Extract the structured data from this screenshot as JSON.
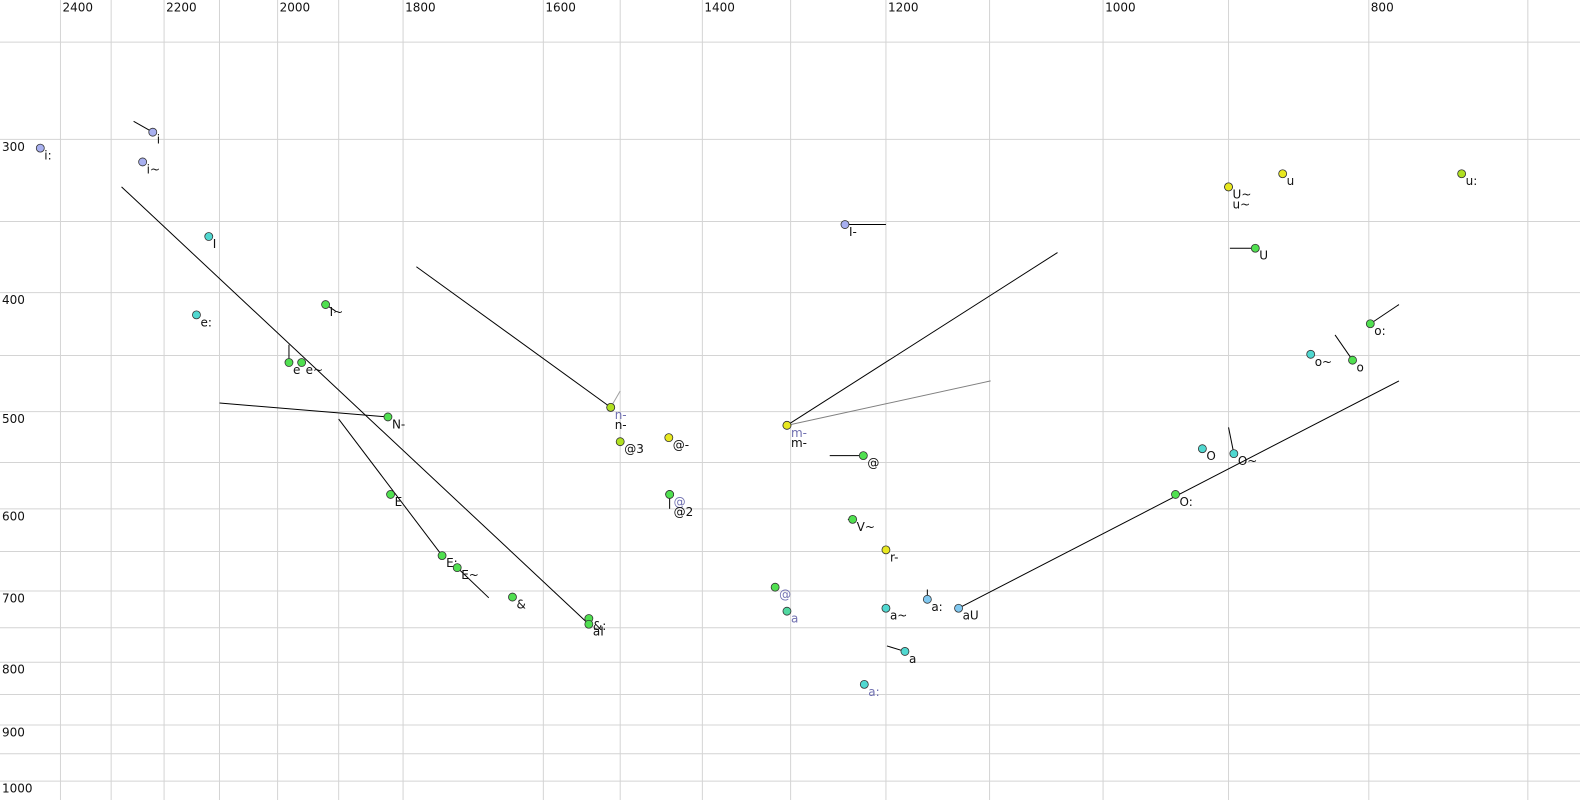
{
  "chart_data": {
    "type": "scatter",
    "log_x": true,
    "log_y": true,
    "grid": true,
    "xlim": [
      2525,
      670
    ],
    "ylim": [
      231,
      1036
    ],
    "xticks": [
      2400,
      2200,
      2000,
      1800,
      1600,
      1400,
      1200,
      1000,
      800
    ],
    "xminor": [
      2300,
      2100,
      1900,
      1500,
      1300,
      1100,
      900,
      700
    ],
    "yticks": [
      300,
      400,
      500,
      600,
      700,
      800,
      900,
      1000
    ],
    "yminor": [
      250,
      350,
      450,
      550,
      650,
      750,
      850,
      950
    ],
    "points": [
      {
        "label": "i:",
        "x": 2441,
        "y": 305,
        "color": "#a8b0f0"
      },
      {
        "label": "i",
        "x": 2221,
        "y": 296,
        "color": "#a8b0f0",
        "trajectory": {
          "x": 2257,
          "y": 290,
          "color": "#000000"
        }
      },
      {
        "label": "i~",
        "x": 2240,
        "y": 313,
        "color": "#a8b0f0"
      },
      {
        "label": "I",
        "x": 2119,
        "y": 360,
        "color": "#50d8d0"
      },
      {
        "label": "e:",
        "x": 2141,
        "y": 417,
        "color": "#50d8d0"
      },
      {
        "label": "I~",
        "x": 1921,
        "y": 409,
        "color": "#50e050",
        "trajectory": {
          "x": 1905,
          "y": 414,
          "color": "#000000"
        }
      },
      {
        "label": "e",
        "x": 1981,
        "y": 456,
        "color": "#50e050",
        "trajectory": {
          "x": 1981,
          "y": 441,
          "color": "#000000"
        }
      },
      {
        "label": "e~",
        "x": 1960,
        "y": 456,
        "color": "#50e050"
      },
      {
        "label": "N-",
        "x": 1823,
        "y": 505,
        "color": "#50e050",
        "trajectory": {
          "x": 2100,
          "y": 492,
          "color": "#000000"
        }
      },
      {
        "label": "E",
        "x": 1819,
        "y": 584,
        "color": "#50e050"
      },
      {
        "label": "E:",
        "x": 1742,
        "y": 655,
        "color": "#50e050",
        "trajectory": {
          "x": 1900,
          "y": 507,
          "color": "#000000"
        }
      },
      {
        "label": "E~",
        "x": 1720,
        "y": 670,
        "color": "#50e050",
        "trajectory": {
          "x": 1675,
          "y": 709,
          "color": "#000000"
        }
      },
      {
        "label": "&",
        "x": 1642,
        "y": 708,
        "color": "#50e050"
      },
      {
        "label": "&:",
        "x": 1540,
        "y": 737,
        "color": "#50e050"
      },
      {
        "label": "aI",
        "x": 1540,
        "y": 745,
        "color": "#50e050",
        "trajectory": {
          "x": 2280,
          "y": 328,
          "color": "#000000"
        }
      },
      {
        "label": "n-",
        "x": 1512,
        "y": 496,
        "color": "#b0e020",
        "label_color": "#7070b0",
        "trajectory": {
          "x": 1500,
          "y": 481,
          "color": "#a0a0a0"
        }
      },
      {
        "label": "n-",
        "x": 1512,
        "y": 496,
        "color": "#b0e020",
        "trajectory": {
          "x": 1780,
          "y": 381,
          "color": "#000000"
        }
      },
      {
        "label": "@3",
        "x": 1500,
        "y": 529,
        "color": "#b0e020"
      },
      {
        "label": "@-",
        "x": 1440,
        "y": 525,
        "color": "#e8e820"
      },
      {
        "label": "@",
        "x": 1439,
        "y": 584,
        "color": "#50e050",
        "label_color": "#7070b0"
      },
      {
        "label": "@2",
        "x": 1439,
        "y": 584,
        "color": "#50e050",
        "trajectory": {
          "x": 1439,
          "y": 600,
          "color": "#000000"
        }
      },
      {
        "label": "m-",
        "x": 1304,
        "y": 513,
        "color": "#e8e820",
        "label_color": "#7070b0",
        "trajectory": {
          "x": 1099,
          "y": 472,
          "color": "#808080"
        }
      },
      {
        "label": "m-",
        "x": 1304,
        "y": 513,
        "color": "#e8e820",
        "trajectory": {
          "x": 1039,
          "y": 371,
          "color": "#000000"
        }
      },
      {
        "label": "I-",
        "x": 1242,
        "y": 352,
        "color": "#a8b0f0",
        "trajectory": {
          "x": 1200,
          "y": 352,
          "color": "#000000"
        }
      },
      {
        "label": "@",
        "x": 1223,
        "y": 543,
        "color": "#50e050",
        "trajectory": {
          "x": 1258,
          "y": 543,
          "color": "#000000"
        }
      },
      {
        "label": "V~",
        "x": 1234,
        "y": 612,
        "color": "#50e050",
        "trajectory": {
          "x": 1239,
          "y": 612,
          "color": "#000000"
        }
      },
      {
        "label": "r-",
        "x": 1200,
        "y": 648,
        "color": "#e8e820"
      },
      {
        "label": "@",
        "x": 1317,
        "y": 695,
        "color": "#50e050",
        "label_color": "#7070b0"
      },
      {
        "label": "a",
        "x": 1304,
        "y": 727,
        "color": "#50d8a0",
        "label_color": "#7070b0"
      },
      {
        "label": "a~",
        "x": 1200,
        "y": 723,
        "color": "#50d8d0"
      },
      {
        "label": "a:",
        "x": 1159,
        "y": 711,
        "color": "#80c8f0",
        "trajectory": {
          "x": 1159,
          "y": 698,
          "color": "#000000"
        }
      },
      {
        "label": "aU",
        "x": 1129,
        "y": 723,
        "color": "#80c8f0",
        "trajectory": {
          "x": 780,
          "y": 472,
          "color": "#000000"
        }
      },
      {
        "label": "a",
        "x": 1181,
        "y": 784,
        "color": "#50d8d0",
        "trajectory": {
          "x": 1199,
          "y": 776,
          "color": "#000000"
        }
      },
      {
        "label": "a:",
        "x": 1222,
        "y": 834,
        "color": "#50d8d0",
        "label_color": "#7070b0"
      },
      {
        "label": "U~",
        "x": 900,
        "y": 328,
        "color": "#e8e820"
      },
      {
        "label": "u~",
        "x": 900,
        "y": 328,
        "color": "#e8e820"
      },
      {
        "label": "u",
        "x": 860,
        "y": 320,
        "color": "#e8e820"
      },
      {
        "label": "u:",
        "x": 740,
        "y": 320,
        "color": "#b0e020"
      },
      {
        "label": "U",
        "x": 880,
        "y": 368,
        "color": "#50e050",
        "trajectory": {
          "x": 899,
          "y": 368,
          "color": "#000000"
        }
      },
      {
        "label": "o:",
        "x": 799,
        "y": 424,
        "color": "#50e050",
        "trajectory": {
          "x": 780,
          "y": 409,
          "color": "#000000"
        }
      },
      {
        "label": "o~",
        "x": 840,
        "y": 449,
        "color": "#50d8d0"
      },
      {
        "label": "o",
        "x": 811,
        "y": 454,
        "color": "#50e050",
        "trajectory": {
          "x": 823,
          "y": 433,
          "color": "#000000"
        }
      },
      {
        "label": "O",
        "x": 920,
        "y": 536,
        "color": "#50d8d0"
      },
      {
        "label": "O~",
        "x": 896,
        "y": 541,
        "color": "#50d8d0",
        "trajectory": {
          "x": 900,
          "y": 515,
          "color": "#000000"
        }
      },
      {
        "label": "O:",
        "x": 941,
        "y": 584,
        "color": "#50e050"
      }
    ]
  }
}
